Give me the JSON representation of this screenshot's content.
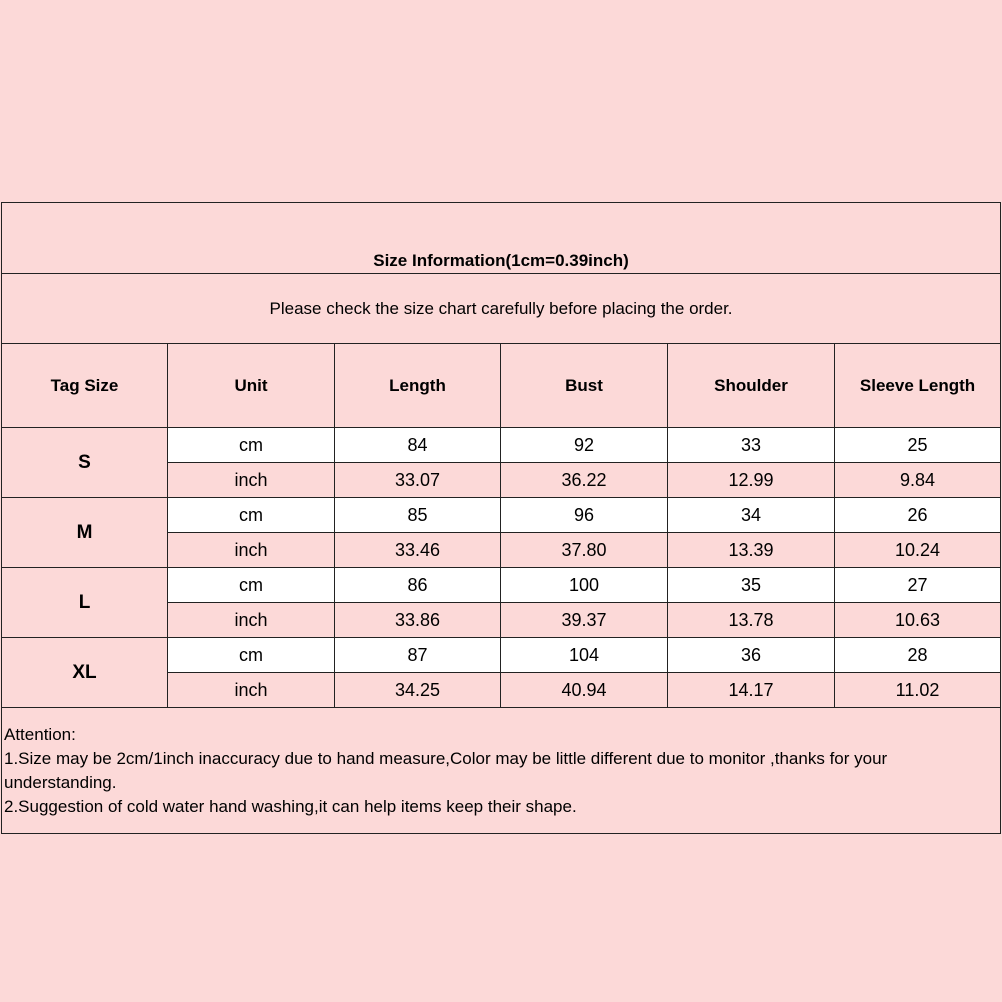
{
  "title": "Size Information(1cm=0.39inch)",
  "notice": "Please check the size chart carefully before placing the order.",
  "headers": [
    "Tag Size",
    "Unit",
    "Length",
    "Bust",
    "Shoulder",
    "Sleeve Length"
  ],
  "sizes": [
    {
      "tag": "S",
      "rows": [
        [
          "cm",
          "84",
          "92",
          "33",
          "25"
        ],
        [
          "inch",
          "33.07",
          "36.22",
          "12.99",
          "9.84"
        ]
      ]
    },
    {
      "tag": "M",
      "rows": [
        [
          "cm",
          "85",
          "96",
          "34",
          "26"
        ],
        [
          "inch",
          "33.46",
          "37.80",
          "13.39",
          "10.24"
        ]
      ]
    },
    {
      "tag": "L",
      "rows": [
        [
          "cm",
          "86",
          "100",
          "35",
          "27"
        ],
        [
          "inch",
          "33.86",
          "39.37",
          "13.78",
          "10.63"
        ]
      ]
    },
    {
      "tag": "XL",
      "rows": [
        [
          "cm",
          "87",
          "104",
          "36",
          "28"
        ],
        [
          "inch",
          "34.25",
          "40.94",
          "14.17",
          "11.02"
        ]
      ]
    }
  ],
  "attention": {
    "heading": "Attention:",
    "line1": "1.Size may be 2cm/1inch inaccuracy due to hand measure,Color may be little different due to monitor ,thanks for your understanding.",
    "line2": "2.Suggestion of cold water hand washing,it can help items keep their shape."
  },
  "colors": {
    "background": "#fcd9d8",
    "cm_row": "#ffffff",
    "border": "#222222"
  }
}
